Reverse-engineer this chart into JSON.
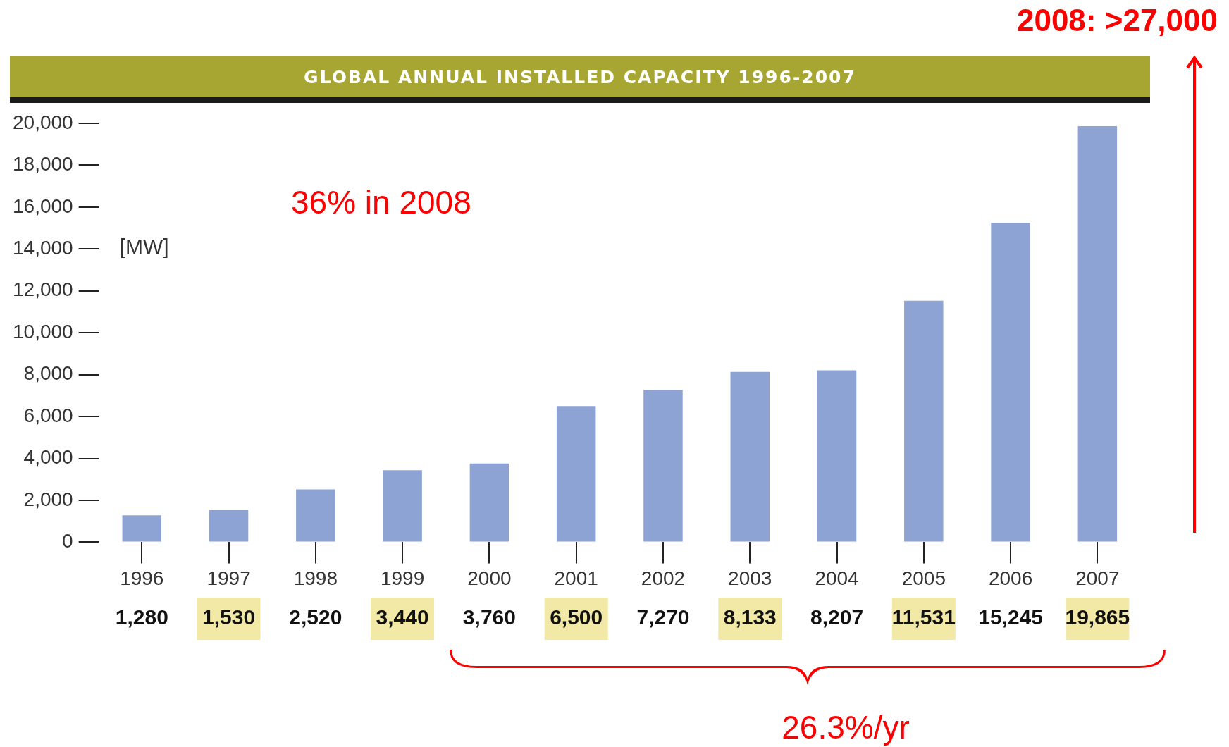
{
  "chart_data": {
    "type": "bar",
    "title": "GLOBAL ANNUAL INSTALLED CAPACITY 1996-2007",
    "ylabel": "[MW]",
    "categories": [
      "1996",
      "1997",
      "1998",
      "1999",
      "2000",
      "2001",
      "2002",
      "2003",
      "2004",
      "2005",
      "2006",
      "2007"
    ],
    "values": [
      1280,
      1530,
      2520,
      3440,
      3760,
      6500,
      7270,
      8133,
      8207,
      11531,
      15245,
      19865
    ],
    "value_labels": [
      "1,280",
      "1,530",
      "2,520",
      "3,440",
      "3,760",
      "6,500",
      "7,270",
      "8,133",
      "8,207",
      "11,531",
      "15,245",
      "19,865"
    ],
    "color": "#8ca3d3",
    "ylim": [
      0,
      20000
    ],
    "yticks": [
      {
        "value": 0,
        "label": "0"
      },
      {
        "value": 2000,
        "label": "2,000"
      },
      {
        "value": 4000,
        "label": "4,000"
      },
      {
        "value": 6000,
        "label": "6,000"
      },
      {
        "value": 8000,
        "label": "8,000"
      },
      {
        "value": 10000,
        "label": "10,000"
      },
      {
        "value": 12000,
        "label": "12,000"
      },
      {
        "value": 14000,
        "label": "14,000"
      },
      {
        "value": 16000,
        "label": "16,000"
      },
      {
        "value": 18000,
        "label": "18,000"
      },
      {
        "value": 20000,
        "label": "20,000"
      }
    ],
    "annotations": [
      "36% in 2008",
      "2008: >27,000",
      "26.3%/yr"
    ]
  }
}
